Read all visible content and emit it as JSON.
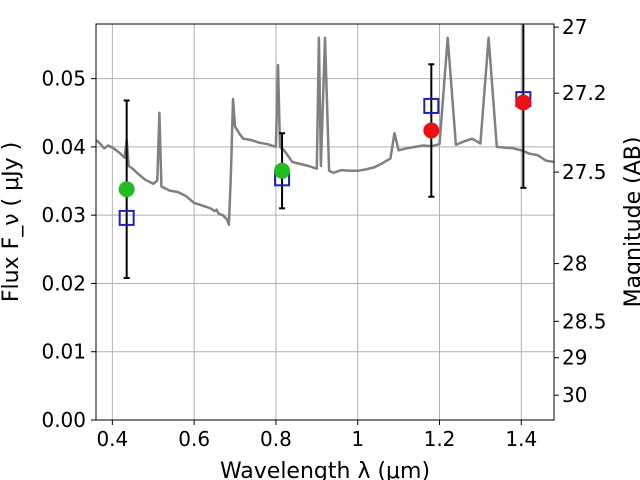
{
  "chart_data": {
    "type": "scatter",
    "xlabel": "Wavelength  λ (μm)",
    "ylabel": "Flux  F_ν  ( μJy )",
    "y2label": "Magnitude (AB)",
    "xlim": [
      0.36,
      1.48
    ],
    "ylim": [
      0.0,
      0.058
    ],
    "grid": true,
    "x_ticks": [
      0.4,
      0.6,
      0.8,
      1.0,
      1.2,
      1.4
    ],
    "x_tick_labels": [
      "0.4",
      "0.6",
      "0.8",
      "1",
      "1.2",
      "1.4"
    ],
    "y_ticks": [
      0.0,
      0.01,
      0.02,
      0.03,
      0.04,
      0.05
    ],
    "y_tick_labels": [
      "0.00",
      "0.01",
      "0.02",
      "0.03",
      "0.04",
      "0.05"
    ],
    "y2_ticks": [
      27,
      27.2,
      27.5,
      28,
      28.5,
      29,
      30
    ],
    "y2_tick_labels": [
      "27",
      "27.2",
      "27.5",
      "28",
      "28.5",
      "29",
      "30"
    ],
    "series": [
      {
        "kind": "model_spectrum",
        "color": "#808080",
        "x": [
          0.36,
          0.37,
          0.38,
          0.39,
          0.4,
          0.41,
          0.42,
          0.43,
          0.435,
          0.44,
          0.45,
          0.46,
          0.48,
          0.5,
          0.51,
          0.515,
          0.52,
          0.54,
          0.56,
          0.58,
          0.6,
          0.62,
          0.64,
          0.65,
          0.655,
          0.66,
          0.67,
          0.68,
          0.685,
          0.69,
          0.695,
          0.7,
          0.71,
          0.72,
          0.74,
          0.76,
          0.78,
          0.8,
          0.805,
          0.81,
          0.82,
          0.84,
          0.86,
          0.88,
          0.9,
          0.905,
          0.91,
          0.92,
          0.93,
          0.94,
          0.96,
          0.98,
          1.0,
          1.02,
          1.04,
          1.06,
          1.08,
          1.09,
          1.1,
          1.12,
          1.14,
          1.16,
          1.18,
          1.2,
          1.22,
          1.24,
          1.26,
          1.28,
          1.3,
          1.32,
          1.34,
          1.36,
          1.38,
          1.4,
          1.42,
          1.44,
          1.46,
          1.48
        ],
        "y": [
          0.041,
          0.0405,
          0.0398,
          0.0402,
          0.0399,
          0.0395,
          0.039,
          0.0384,
          0.041,
          0.0372,
          0.0368,
          0.0362,
          0.0352,
          0.0346,
          0.0351,
          0.045,
          0.0342,
          0.0336,
          0.0334,
          0.0328,
          0.0318,
          0.0314,
          0.031,
          0.0306,
          0.0308,
          0.0302,
          0.03,
          0.0294,
          0.0286,
          0.036,
          0.047,
          0.043,
          0.042,
          0.0412,
          0.041,
          0.0406,
          0.0404,
          0.04,
          0.052,
          0.04,
          0.0395,
          0.0378,
          0.0375,
          0.0372,
          0.0368,
          0.056,
          0.0372,
          0.056,
          0.0365,
          0.0362,
          0.0366,
          0.0365,
          0.0365,
          0.0367,
          0.037,
          0.0376,
          0.0383,
          0.042,
          0.0395,
          0.0398,
          0.04,
          0.0402,
          0.0401,
          0.0404,
          0.056,
          0.0403,
          0.0408,
          0.0412,
          0.0405,
          0.056,
          0.04,
          0.0399,
          0.0398,
          0.0395,
          0.039,
          0.0388,
          0.038,
          0.0378
        ]
      },
      {
        "kind": "observed_with_errors",
        "color": "#000000",
        "x": [
          0.435,
          0.815,
          1.18,
          1.405
        ],
        "y": [
          0.0338,
          0.0365,
          0.0424,
          0.0465
        ],
        "yerr_low": [
          0.013,
          0.0055,
          0.0097,
          0.0125
        ],
        "yerr_high": [
          0.013,
          0.0055,
          0.0097,
          0.0125
        ]
      },
      {
        "kind": "model_photometry",
        "marker": "open_square",
        "color": "#1f1fbf",
        "x": [
          0.435,
          0.815,
          1.18,
          1.405
        ],
        "y": [
          0.0296,
          0.0354,
          0.046,
          0.047
        ]
      },
      {
        "kind": "detections",
        "marker": "filled_circle",
        "color": "#22bb22",
        "x": [
          0.435,
          0.815
        ],
        "y": [
          0.0338,
          0.0365
        ]
      },
      {
        "kind": "detections",
        "marker": "filled_circle",
        "color": "#ee1111",
        "x": [
          1.18,
          1.405
        ],
        "y": [
          0.0424,
          0.0465
        ]
      }
    ]
  }
}
